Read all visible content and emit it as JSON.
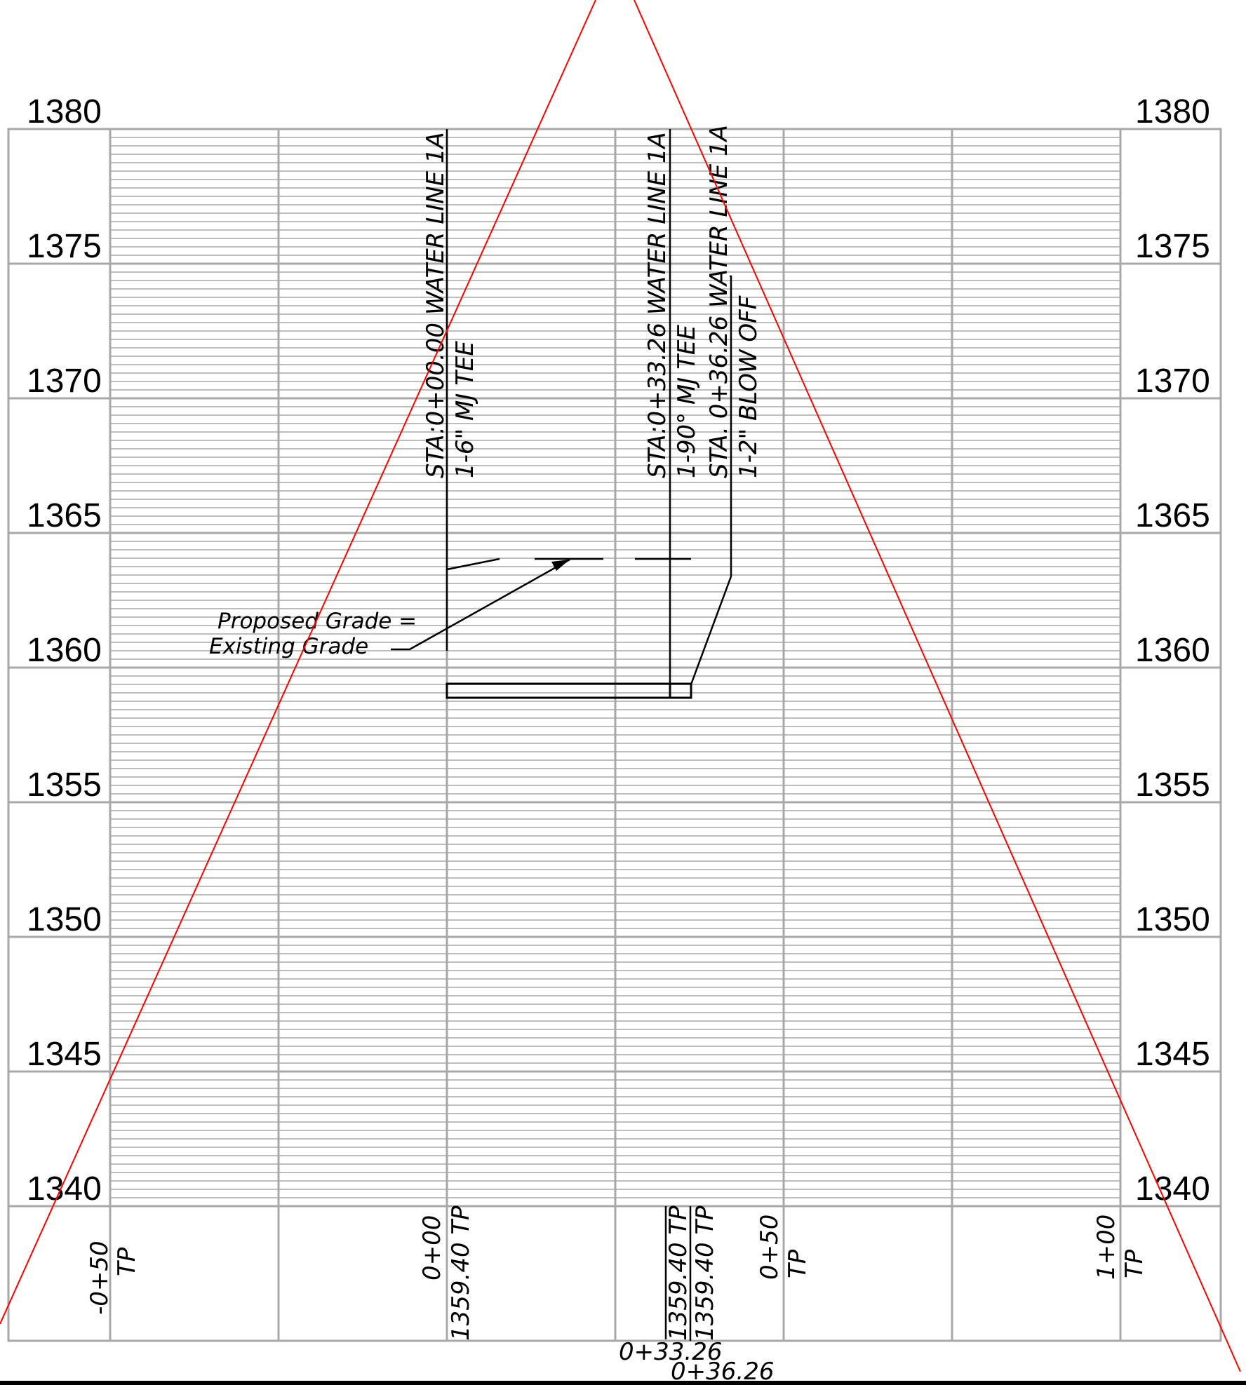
{
  "elevations": [
    "1380",
    "1375",
    "1370",
    "1365",
    "1360",
    "1355",
    "1350",
    "1345",
    "1340"
  ],
  "callouts": {
    "sta_0": {
      "line1": "STA:0+00.00 WATER LINE 1A",
      "line2": "1-6\" MJ TEE"
    },
    "sta_33": {
      "line1": "STA:0+33.26 WATER LINE 1A",
      "line2": "1-90° MJ TEE"
    },
    "sta_36": {
      "line1": "STA. 0+36.26 WATER LINE 1A",
      "line2": "1-2\" BLOW OFF"
    }
  },
  "grade_note": {
    "line1": "Proposed Grade =",
    "line2": "Existing Grade"
  },
  "stations": {
    "neg50": {
      "station": "-0+50",
      "tp": "TP"
    },
    "zero": {
      "station": "0+00",
      "value": "1359.40 TP"
    },
    "s33": {
      "value": "1359.40 TP",
      "station": "0+33.26"
    },
    "s36": {
      "value": "1359.40 TP",
      "station": "0+36.26"
    },
    "plus50": {
      "station": "0+50",
      "tp": "TP"
    },
    "plus100": {
      "station": "1+00",
      "tp": "TP"
    }
  },
  "colors": {
    "grid": "#a8a8a8",
    "grid_minor": "#bdbdbd",
    "ink": "#000000",
    "overlay": "#ff0000"
  }
}
